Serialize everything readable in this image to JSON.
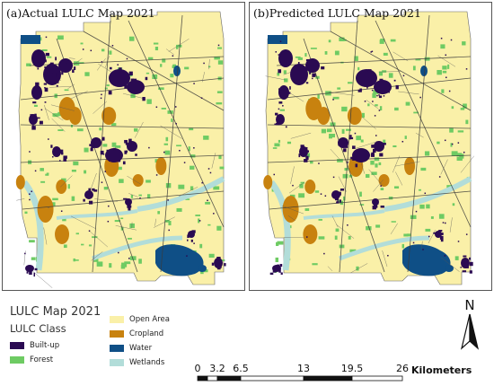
{
  "panels": [
    {
      "title": "(a)Actual LULC Map 2021"
    },
    {
      "title": "(b)Predicted LULC Map 2021"
    }
  ],
  "legend": {
    "title": "LULC Map 2021",
    "subtitle": "LULC Class",
    "items": [
      {
        "label": "Built-up",
        "color": "#2a0a52"
      },
      {
        "label": "Forest",
        "color": "#6ecb63"
      },
      {
        "label": "Open Area",
        "color": "#faf0a8"
      },
      {
        "label": "Cropland",
        "color": "#c8820f"
      },
      {
        "label": "Water",
        "color": "#0f4f86"
      },
      {
        "label": "Wetlands",
        "color": "#b2ddd9"
      }
    ]
  },
  "north_arrow": {
    "label": "N"
  },
  "scale_bar": {
    "ticks": [
      "0",
      "3.2",
      "6.5",
      "13",
      "19.5",
      "26"
    ],
    "units": "Kilometers"
  }
}
